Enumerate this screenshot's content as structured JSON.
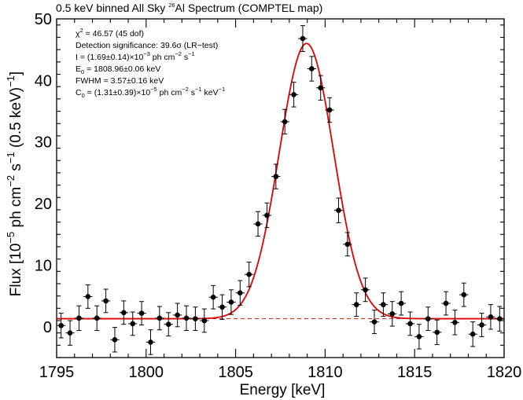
{
  "chart_data": {
    "type": "scatter",
    "title_parts": {
      "before": "0.5 keV binned All Sky ",
      "sup": "26",
      "after": "Al Spectrum (COMPTEL map)"
    },
    "xlabel": "Energy [keV]",
    "ylabel_parts": {
      "a": "Flux [10",
      "a_sup": "−5",
      "b": " ph cm",
      "b_sup": "−2",
      "c": " s",
      "c_sup": "−1",
      "d": " (0.5 keV)",
      "d_sup": "−1",
      "e": "]"
    },
    "xlim": [
      1795,
      1820
    ],
    "ylim": [
      -5,
      50
    ],
    "xticks": [
      "1795",
      "1800",
      "1805",
      "1810",
      "1815",
      "1820"
    ],
    "yticks": [
      "0",
      "10",
      "20",
      "30",
      "40",
      "50"
    ],
    "grid": false,
    "annotations": {
      "chi2": {
        "a": "χ",
        "sup": "2",
        "b": " = 46.57 (45 dof)"
      },
      "significance": "Detection significance: 39.6σ (LR−test)",
      "intensity": {
        "a": "I = (1.69±0.14)×10",
        "s1": "−3",
        "b": " ph cm",
        "s2": "−2",
        "c": " s",
        "s3": "−1"
      },
      "centroid": {
        "a": "E",
        "sub": "0",
        "b": " = 1808.96±0.06 keV"
      },
      "fwhm": "FWHM = 3.57±0.16 keV",
      "continuum": {
        "a": "C",
        "sub": "0",
        "b": " = (1.31±0.39)×10",
        "s1": "−5",
        "c": " ph cm",
        "s2": "−2",
        "d": " s",
        "s3": "−1",
        "e": " keV",
        "s4": "−1"
      }
    },
    "series": [
      {
        "style": "points-with-errorbars",
        "x_binwidth": 0.5,
        "x": [
          1795.25,
          1795.75,
          1796.25,
          1796.75,
          1797.25,
          1797.75,
          1798.25,
          1798.75,
          1799.25,
          1799.75,
          1800.25,
          1800.75,
          1801.25,
          1801.75,
          1802.25,
          1802.75,
          1803.25,
          1803.75,
          1804.25,
          1804.75,
          1805.25,
          1805.75,
          1806.25,
          1806.75,
          1807.25,
          1807.75,
          1808.25,
          1808.75,
          1809.25,
          1809.75,
          1810.25,
          1810.75,
          1811.25,
          1811.75,
          1812.25,
          1812.75,
          1813.25,
          1813.75,
          1814.25,
          1814.75,
          1815.25,
          1815.75,
          1816.25,
          1816.75,
          1817.25,
          1817.75,
          1818.25,
          1818.75,
          1819.25,
          1819.75
        ],
        "y": [
          0.2,
          -1.0,
          1.4,
          4.9,
          1.4,
          4.2,
          -2.1,
          2.3,
          0.5,
          2.2,
          -2.5,
          1.4,
          0.4,
          1.9,
          1.4,
          1.3,
          1.0,
          4.8,
          3.2,
          4.0,
          5.5,
          8.5,
          16.7,
          18.1,
          24.4,
          33.3,
          37.7,
          46.8,
          41.9,
          38.8,
          35.2,
          18.9,
          13.4,
          3.6,
          6.0,
          0.8,
          3.6,
          2.1,
          3.8,
          0.5,
          -1.6,
          1.3,
          -0.9,
          3.8,
          0.7,
          5.2,
          -1.2,
          0.3,
          1.6,
          1.3
        ],
        "yerr": [
          2.0,
          2.0,
          2.0,
          1.9,
          2.0,
          1.9,
          2.0,
          1.9,
          1.9,
          1.9,
          2.0,
          1.9,
          1.9,
          1.9,
          2.0,
          1.9,
          1.9,
          1.9,
          2.0,
          2.0,
          2.0,
          2.0,
          2.0,
          2.0,
          2.0,
          2.0,
          2.0,
          2.1,
          2.0,
          2.0,
          2.0,
          2.0,
          1.9,
          1.9,
          1.9,
          1.9,
          1.9,
          2.0,
          1.9,
          1.9,
          2.0,
          1.9,
          2.0,
          1.9,
          2.0,
          1.9,
          2.0,
          1.9,
          2.0,
          2.0
        ]
      },
      {
        "style": "fit-curve",
        "model": "gaussian-plus-constant",
        "peak": 44.7,
        "centroid": 1808.96,
        "fwhm": 3.57,
        "continuum": 1.31,
        "color": "#e00000"
      },
      {
        "style": "continuum-dashed",
        "value": 1.31,
        "color": "#e00000"
      }
    ],
    "colors": {
      "points": "#000000",
      "fit": "#e00000",
      "axes": "#000000"
    }
  }
}
